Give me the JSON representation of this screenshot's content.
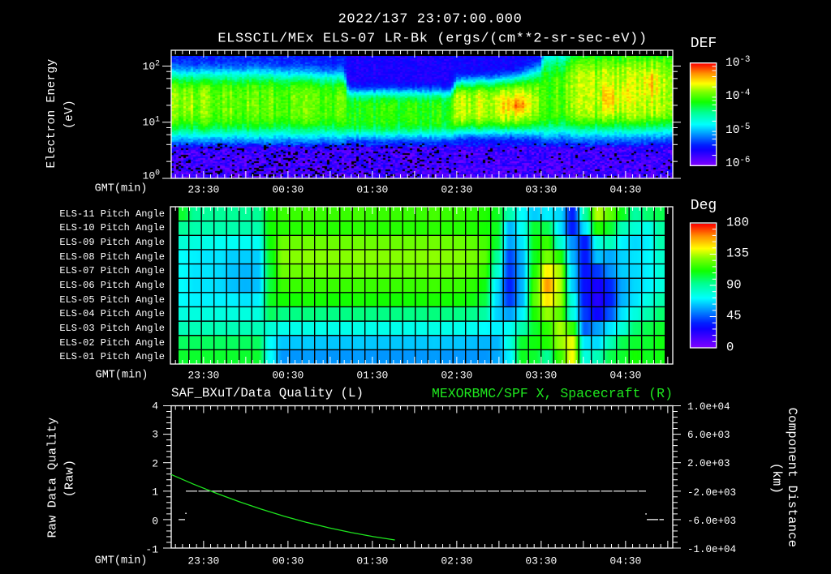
{
  "header": {
    "timestamp": "2022/137 23:07:00.000",
    "title": "ELSSCIL/MEx ELS-07 LR-Bk  (ergs/(cm**2-sr-sec-eV))"
  },
  "time_axis": {
    "label": "GMT(min)",
    "ticks": [
      "23:30",
      "00:30",
      "01:30",
      "02:30",
      "03:30",
      "04:30"
    ]
  },
  "spectrogram": {
    "ylabel": "Electron Energy",
    "yunit": "(eV)",
    "y_ticks": [
      {
        "base": "10",
        "exp": "2"
      },
      {
        "base": "10",
        "exp": "1"
      },
      {
        "base": "10",
        "exp": "0"
      }
    ],
    "colorbar": {
      "title": "DEF",
      "ticks": [
        {
          "base": "10",
          "exp": "-3"
        },
        {
          "base": "10",
          "exp": "-4"
        },
        {
          "base": "10",
          "exp": "-5"
        },
        {
          "base": "10",
          "exp": "-6"
        }
      ]
    }
  },
  "pitch": {
    "rows": [
      "ELS-11 Pitch Angle",
      "ELS-10 Pitch Angle",
      "ELS-09 Pitch Angle",
      "ELS-08 Pitch Angle",
      "ELS-07 Pitch Angle",
      "ELS-06 Pitch Angle",
      "ELS-05 Pitch Angle",
      "ELS-04 Pitch Angle",
      "ELS-03 Pitch Angle",
      "ELS-02 Pitch Angle",
      "ELS-01 Pitch Angle"
    ],
    "colorbar": {
      "title": "Deg",
      "ticks": [
        "180",
        "135",
        "90",
        "45",
        "0"
      ]
    }
  },
  "timeseries": {
    "left_title": "SAF_BXuT/Data Quality (L)",
    "right_title": "MEXORBMC/SPF X, Spacecraft (R)",
    "ylabel_left": "Raw Data Quality",
    "yunit_left": "(Raw)",
    "ylabel_right": "Component Distance",
    "yunit_right": "(km)",
    "yticks_left": [
      "4",
      "3",
      "2",
      "1",
      "0",
      "-1"
    ],
    "yticks_right": [
      "1.0e+04",
      "6.0e+03",
      "2.0e+03",
      "-2.0e+03",
      "-6.0e+03",
      "-1.0e+04"
    ]
  },
  "colors": {
    "background": "#000000",
    "foreground": "#ffffff",
    "right_series": "#1ee61e",
    "grid": "#000000"
  },
  "colormap": [
    [
      0.0,
      "#8000ff"
    ],
    [
      0.15,
      "#1000ff"
    ],
    [
      0.2,
      "#0020ff"
    ],
    [
      0.3,
      "#0090ff"
    ],
    [
      0.4,
      "#00ffff"
    ],
    [
      0.52,
      "#00ff90"
    ],
    [
      0.62,
      "#10ff00"
    ],
    [
      0.72,
      "#80ff00"
    ],
    [
      0.8,
      "#ffff00"
    ],
    [
      0.9,
      "#ff9000"
    ],
    [
      1.0,
      "#ff0000"
    ]
  ],
  "chart_data": [
    {
      "type": "heatmap",
      "name": "electron_energy_spectrogram",
      "title": "ELSSCIL/MEx ELS-07 LR-Bk  (ergs/(cm**2-sr-sec-eV))",
      "xlabel": "GMT(min)",
      "ylabel": "Electron Energy (eV)",
      "x_range": [
        "23:07",
        "05:03"
      ],
      "x_ticks": [
        "23:30",
        "00:30",
        "01:30",
        "02:30",
        "03:30",
        "04:30"
      ],
      "y_scale": "log",
      "y_range": [
        1,
        190
      ],
      "y_ticks": [
        1,
        10,
        100
      ],
      "colorbar": {
        "label": "DEF",
        "scale": "log",
        "range": [
          1e-06,
          0.001
        ],
        "ticks": [
          0.001,
          0.0001,
          1e-05,
          1e-06
        ]
      },
      "model": {
        "units": {
          "t": "minutes after 23:07",
          "logE": "log10 eV",
          "logDEF": "log10 DEF"
        },
        "keyframes": [
          {
            "t": 0,
            "logE": 1.34,
            "logDEF": -3.85,
            "wUp": 0.55,
            "wDown": 0.6,
            "bg": -5.4
          },
          {
            "t": 69,
            "logE": 1.34,
            "logDEF": -3.95,
            "wUp": 0.55,
            "wDown": 0.6,
            "bg": -5.4
          },
          {
            "t": 123,
            "logE": 1.32,
            "logDEF": -4.0,
            "wUp": 0.52,
            "wDown": 0.58,
            "bg": -5.45
          },
          {
            "t": 126,
            "logE": 1.18,
            "logDEF": -4.15,
            "wUp": 0.38,
            "wDown": 0.46,
            "bg": -5.6
          },
          {
            "t": 199,
            "logE": 1.18,
            "logDEF": -4.15,
            "wUp": 0.38,
            "wDown": 0.46,
            "bg": -5.6
          },
          {
            "t": 203,
            "logE": 1.3,
            "logDEF": -3.75,
            "wUp": 0.43,
            "wDown": 0.5,
            "bg": -5.55
          },
          {
            "t": 230,
            "logE": 1.3,
            "logDEF": -3.7,
            "wUp": 0.46,
            "wDown": 0.5,
            "bg": -5.55
          },
          {
            "t": 247,
            "logE": 1.33,
            "logDEF": -3.7,
            "wUp": 0.48,
            "wDown": 0.52,
            "bg": -5.55
          },
          {
            "t": 262,
            "logE": 1.34,
            "logDEF": -3.85,
            "wUp": 0.6,
            "wDown": 0.55,
            "bg": -5.5
          },
          {
            "t": 266,
            "logE": 1.34,
            "logDEF": -4.05,
            "wUp": 0.9,
            "wDown": 0.58,
            "bg": -5.45
          },
          {
            "t": 281,
            "logE": 1.42,
            "logDEF": -3.95,
            "wUp": 0.85,
            "wDown": 0.62,
            "bg": -5.45
          },
          {
            "t": 285,
            "logE": 1.44,
            "logDEF": -3.75,
            "wUp": 1.0,
            "wDown": 0.66,
            "bg": -5.45
          },
          {
            "t": 357,
            "logE": 1.47,
            "logDEF": -3.7,
            "wUp": 1.0,
            "wDown": 0.66,
            "bg": -5.45
          }
        ],
        "hotspots": [
          {
            "t": 11,
            "logE": 1.37,
            "dt": 8,
            "dE": 0.2,
            "add": 0.12
          },
          {
            "t": 246,
            "logE": 1.31,
            "dt": 10,
            "dE": 0.13,
            "add": 0.35
          },
          {
            "t": 312,
            "logE": 1.41,
            "dt": 5,
            "dE": 0.2,
            "add": 0.28
          },
          {
            "t": 323,
            "logE": 1.52,
            "dt": 3.5,
            "dE": 0.17,
            "add": 0.15
          },
          {
            "t": 341,
            "logE": 1.67,
            "dt": 4,
            "dE": 0.23,
            "add": 0.3
          }
        ],
        "floor": {
          "logE": 0.62,
          "logDEF": -5.75,
          "gap_fraction_before_t203": 0.14,
          "gap_fraction_after_t203": 0.05
        }
      }
    },
    {
      "type": "heatmap",
      "name": "pitch_angle",
      "xlabel": "GMT(min)",
      "rows": [
        "ELS-11",
        "ELS-10",
        "ELS-09",
        "ELS-08",
        "ELS-07",
        "ELS-06",
        "ELS-05",
        "ELS-04",
        "ELS-03",
        "ELS-02",
        "ELS-01"
      ],
      "column_start_min": 8.08,
      "column_step_min": 8.94,
      "colorbar": {
        "label": "Deg",
        "range": [
          0,
          180
        ],
        "ticks": [
          180,
          135,
          90,
          45,
          0
        ]
      },
      "values": [
        [
          106,
          92,
          92,
          92,
          92,
          92,
          92,
          112,
          118,
          118,
          120,
          118,
          118,
          118,
          120,
          118,
          118,
          118,
          118,
          118,
          120,
          118,
          118,
          116,
          114,
          108,
          88,
          72,
          64,
          70,
          66,
          35,
          90,
          136,
          124,
          108,
          90,
          98,
          102
        ],
        [
          92,
          88,
          88,
          88,
          88,
          88,
          88,
          112,
          115,
          115,
          116,
          115,
          115,
          115,
          116,
          115,
          115,
          115,
          115,
          115,
          116,
          115,
          115,
          114,
          112,
          108,
          60,
          74,
          106,
          102,
          68,
          34,
          68,
          115,
          106,
          86,
          80,
          76,
          90
        ],
        [
          80,
          78,
          76,
          74,
          74,
          74,
          74,
          112,
          126,
          126,
          127,
          126,
          126,
          126,
          127,
          126,
          126,
          126,
          126,
          126,
          127,
          126,
          126,
          124,
          120,
          106,
          57,
          68,
          110,
          118,
          82,
          54,
          34,
          78,
          86,
          70,
          66,
          70,
          88
        ],
        [
          72,
          70,
          68,
          68,
          64,
          64,
          64,
          108,
          130,
          130,
          131,
          130,
          130,
          130,
          131,
          130,
          130,
          130,
          130,
          130,
          131,
          130,
          130,
          128,
          124,
          92,
          42,
          60,
          108,
          128,
          115,
          60,
          33,
          62,
          58,
          65,
          68,
          71,
          82
        ],
        [
          72,
          68,
          68,
          66,
          62,
          60,
          62,
          105,
          126,
          126,
          127,
          126,
          126,
          126,
          127,
          126,
          126,
          126,
          126,
          126,
          127,
          126,
          126,
          124,
          118,
          82,
          40,
          58,
          114,
          146,
          134,
          66,
          32,
          40,
          54,
          64,
          66,
          70,
          80
        ],
        [
          72,
          68,
          68,
          66,
          62,
          60,
          62,
          105,
          118,
          118,
          119,
          118,
          118,
          118,
          119,
          118,
          118,
          118,
          118,
          118,
          119,
          118,
          118,
          116,
          110,
          68,
          35,
          60,
          120,
          160,
          136,
          64,
          31,
          25,
          37,
          58,
          66,
          70,
          78
        ],
        [
          72,
          70,
          70,
          70,
          70,
          68,
          70,
          108,
          112,
          112,
          113,
          112,
          112,
          112,
          113,
          112,
          112,
          112,
          112,
          112,
          113,
          112,
          112,
          110,
          104,
          66,
          40,
          60,
          124,
          148,
          134,
          78,
          33,
          22,
          35,
          60,
          68,
          77,
          88
        ],
        [
          78,
          78,
          78,
          78,
          78,
          78,
          78,
          100,
          95,
          95,
          96,
          95,
          95,
          95,
          96,
          95,
          95,
          95,
          95,
          95,
          96,
          95,
          95,
          94,
          90,
          65,
          57,
          70,
          114,
          132,
          124,
          78,
          40,
          28,
          45,
          68,
          78,
          88,
          98
        ],
        [
          86,
          86,
          86,
          86,
          86,
          86,
          86,
          80,
          76,
          76,
          77,
          76,
          76,
          76,
          77,
          76,
          76,
          76,
          76,
          76,
          77,
          76,
          76,
          75,
          72,
          70,
          74,
          88,
          106,
          116,
          134,
          118,
          46,
          57,
          68,
          80,
          98,
          102,
          106
        ],
        [
          100,
          100,
          100,
          100,
          100,
          100,
          100,
          72,
          63,
          63,
          64,
          63,
          63,
          63,
          64,
          63,
          63,
          63,
          63,
          63,
          64,
          63,
          63,
          62,
          60,
          60,
          78,
          106,
          110,
          114,
          132,
          142,
          68,
          66,
          86,
          102,
          106,
          106,
          110
        ],
        [
          106,
          106,
          106,
          106,
          106,
          106,
          106,
          72,
          55,
          55,
          56,
          55,
          55,
          55,
          56,
          55,
          55,
          55,
          55,
          55,
          56,
          55,
          55,
          55,
          55,
          58,
          70,
          108,
          106,
          92,
          118,
          144,
          78,
          86,
          102,
          106,
          112,
          108,
          110
        ]
      ]
    },
    {
      "type": "line",
      "name": "data_quality_and_spacecraft_x",
      "xlabel": "GMT(min)",
      "x_unit": "minutes after 23:07",
      "y_left": {
        "label": "Raw Data Quality (Raw)",
        "range": [
          -1,
          4
        ],
        "ticks": [
          4,
          3,
          2,
          1,
          0,
          -1
        ]
      },
      "y_right": {
        "label": "Component Distance (km)",
        "range": [
          -10000,
          10000
        ],
        "ticks": [
          10000,
          6000,
          2000,
          -2000,
          -6000,
          -10000
        ]
      },
      "series": [
        {
          "name": "SAF_BXuT/Data Quality",
          "axis": "left",
          "color": "#ffffff",
          "segments": [
            {
              "t0": 5.2,
              "t1": 9.8,
              "value": 0
            },
            {
              "t0": 10.4,
              "t1": 337.5,
              "value": 1
            },
            {
              "t0": 338.1,
              "t1": 350.2,
              "value": 0
            }
          ],
          "points": [
            {
              "t": 10.4,
              "value": 0.22
            },
            {
              "t": 337.5,
              "value": 0.2
            }
          ]
        },
        {
          "name": "MEXORBMC/SPF X, Spacecraft",
          "axis": "right",
          "color": "#1ee61e",
          "points": [
            {
              "t": 0,
              "km": 341
            },
            {
              "t": 16,
              "km": -1026
            },
            {
              "t": 32,
              "km": -2294
            },
            {
              "t": 48,
              "km": -3463
            },
            {
              "t": 64,
              "km": -4533
            },
            {
              "t": 80,
              "km": -5505
            },
            {
              "t": 96,
              "km": -6378
            },
            {
              "t": 112,
              "km": -7153
            },
            {
              "t": 128,
              "km": -7829
            },
            {
              "t": 144,
              "km": -8406
            },
            {
              "t": 159,
              "km": -8857
            }
          ]
        }
      ]
    }
  ]
}
